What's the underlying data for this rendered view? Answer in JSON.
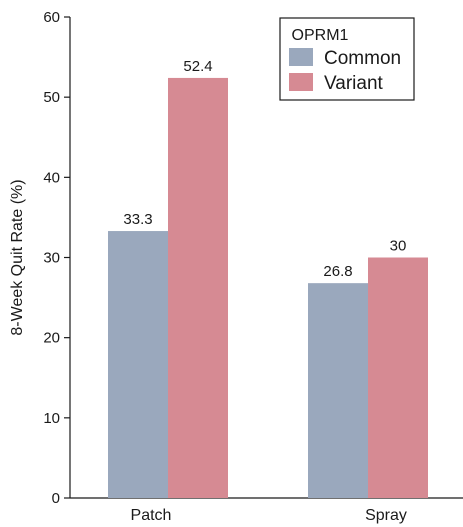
{
  "chart_data": {
    "type": "bar",
    "categories": [
      "Patch",
      "Spray"
    ],
    "series": [
      {
        "name": "Common",
        "values": [
          33.3,
          26.8
        ],
        "color": "#9aa8bd"
      },
      {
        "name": "Variant",
        "values": [
          52.4,
          30
        ],
        "color": "#d68a93"
      }
    ],
    "data_labels": [
      [
        "33.3",
        "26.8"
      ],
      [
        "52.4",
        "30"
      ]
    ],
    "ylabel": "8-Week Quit Rate (%)",
    "xlabel": "",
    "ylim": [
      0,
      60
    ],
    "yticks": [
      0,
      10,
      20,
      30,
      40,
      50,
      60
    ],
    "legend": {
      "title": "OPRM1",
      "placement": "top-right"
    },
    "grid": false
  }
}
